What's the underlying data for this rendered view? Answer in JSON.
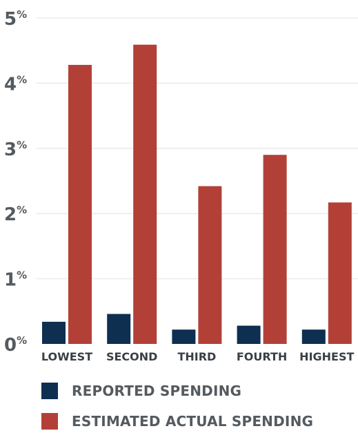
{
  "chart_data": {
    "type": "bar",
    "categories": [
      "LOWEST",
      "SECOND",
      "THIRD",
      "FOURTH",
      "HIGHEST"
    ],
    "series": [
      {
        "name": "REPORTED SPENDING",
        "color": "#0e2f50",
        "values": [
          0.34,
          0.46,
          0.22,
          0.28,
          0.22
        ]
      },
      {
        "name": "ESTIMATED ACTUAL SPENDING",
        "color": "#b34037",
        "values": [
          4.28,
          4.59,
          2.42,
          2.9,
          2.17
        ]
      }
    ],
    "yticks": [
      {
        "value": 0,
        "num": "0",
        "unit": "%"
      },
      {
        "value": 1,
        "num": "1",
        "unit": "%"
      },
      {
        "value": 2,
        "num": "2",
        "unit": "%"
      },
      {
        "value": 3,
        "num": "3",
        "unit": "%"
      },
      {
        "value": 4,
        "num": "4",
        "unit": "%"
      },
      {
        "value": 5,
        "num": "5",
        "unit": "%"
      }
    ],
    "ylim": [
      0,
      5
    ],
    "grid": true,
    "legend_position": "bottom-left",
    "title": "",
    "xlabel": "",
    "ylabel": ""
  }
}
